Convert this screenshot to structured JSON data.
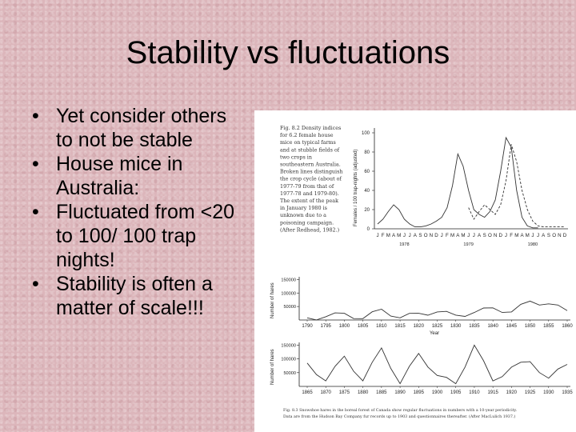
{
  "slide": {
    "title": "Stability vs fluctuations",
    "bullets": [
      [
        "Yet consider others",
        "to not be stable"
      ],
      [
        "House mice in",
        "Australia:"
      ],
      [
        "Fluctuated from <20",
        "to 100/ 100 trap",
        "nights!"
      ],
      [
        "Stability is often a",
        "matter of scale!!!"
      ]
    ]
  },
  "figure": {
    "caption_1": [
      "Fig. 8.2  Density indices",
      "for 6.2 female house",
      "mice on typical farms",
      "and at stubble fields of",
      "two crops in",
      "southeastern Australia.",
      "Broken lines distinguish",
      "the crop cycle (about of",
      "1977-79 from that of",
      "1977-78 and 1979-80).",
      "The extent of the peak",
      "in January 1980 is",
      "unknown due to a",
      "poisoning campaign.",
      "(After Redhead, 1982.)"
    ],
    "caption_2": [
      "Fig. 8.3  Snowshoe hares in the boreal forest of Canada show regular fluctuations in numbers with a 10-year periodicity.",
      "Data are from the Hudson Bay Company fur records up to 1903 and questionnaires thereafter. (After MacLulich 1937.)"
    ],
    "chart_mice": {
      "ylabel": "Females / 100 trap-nights (adjusted)",
      "yticks": [
        "100",
        "80",
        "60",
        "40",
        "20",
        "0"
      ],
      "months": [
        "J",
        "F",
        "M",
        "A",
        "M",
        "J",
        "J",
        "A",
        "S",
        "O",
        "N",
        "D",
        "J",
        "F",
        "M",
        "A",
        "M",
        "J",
        "J",
        "A",
        "S",
        "O",
        "N",
        "D",
        "J",
        "F",
        "M",
        "A",
        "M",
        "J",
        "J",
        "A",
        "S",
        "O",
        "N",
        "D"
      ],
      "years": [
        "1978",
        "1979",
        "1980"
      ]
    },
    "chart_hare_a": {
      "ylabel": "Number of hares",
      "yticks": [
        "150000",
        "100000",
        "50000"
      ],
      "xticks": [
        "1790",
        "1795",
        "1800",
        "1805",
        "1810",
        "1815",
        "1820",
        "1825",
        "1830",
        "1835",
        "1840",
        "1845",
        "1850",
        "1855",
        "1860"
      ],
      "year_label": "Year"
    },
    "chart_hare_b": {
      "ylabel": "Number of hares",
      "yticks": [
        "150000",
        "100000",
        "50000"
      ],
      "xticks": [
        "1865",
        "1870",
        "1875",
        "1880",
        "1885",
        "1890",
        "1895",
        "1900",
        "1905",
        "1910",
        "1915",
        "1920",
        "1925",
        "1930",
        "1935"
      ]
    }
  },
  "chart_data": [
    {
      "type": "line",
      "title": "",
      "xlabel": "",
      "ylabel": "Females / 100 trap-nights (adjusted)",
      "ylim": [
        0,
        100
      ],
      "x": [
        "J78",
        "F78",
        "M78",
        "A78",
        "M78",
        "J78",
        "J78",
        "A78",
        "S78",
        "O78",
        "N78",
        "D78",
        "J79",
        "F79",
        "M79",
        "A79",
        "M79",
        "J79",
        "J79",
        "A79",
        "S79",
        "O79",
        "N79",
        "D79",
        "J80",
        "F80",
        "M80",
        "A80",
        "M80",
        "J80",
        "J80",
        "A80",
        "S80",
        "O80",
        "N80",
        "D80"
      ],
      "series": [
        {
          "values": [
            5,
            10,
            18,
            25,
            20,
            10,
            5,
            2,
            2,
            3,
            5,
            8,
            12,
            22,
            45,
            78,
            65,
            40,
            20,
            15,
            12,
            18,
            30,
            60,
            95,
            85,
            40,
            12,
            3,
            1,
            1,
            null,
            null,
            null,
            null,
            null
          ]
        },
        {
          "style": "dashed",
          "values": [
            null,
            null,
            null,
            null,
            null,
            null,
            null,
            null,
            null,
            null,
            null,
            null,
            null,
            null,
            null,
            null,
            null,
            22,
            10,
            18,
            25,
            20,
            15,
            25,
            50,
            88,
            70,
            40,
            20,
            8,
            3,
            2,
            2,
            2,
            2,
            2
          ]
        }
      ]
    },
    {
      "type": "line",
      "title": "",
      "xlabel": "",
      "ylabel": "Number of hares",
      "ylim": [
        0,
        160000
      ],
      "x": [
        1790,
        1795,
        1800,
        1805,
        1810,
        1815,
        1820,
        1825,
        1830,
        1835,
        1840,
        1845,
        1850,
        1855,
        1860
      ],
      "series": [
        {
          "values": [
            8000,
            12000,
            25000,
            5000,
            40000,
            8000,
            25000,
            30000,
            18000,
            28000,
            45000,
            30000,
            70000,
            60000,
            35000
          ]
        }
      ]
    },
    {
      "type": "line",
      "title": "",
      "xlabel": "Year",
      "ylabel": "Number of hares",
      "ylim": [
        0,
        160000
      ],
      "x": [
        1865,
        1870,
        1875,
        1880,
        1885,
        1890,
        1895,
        1900,
        1905,
        1910,
        1915,
        1920,
        1925,
        1930,
        1935
      ],
      "series": [
        {
          "values": [
            85000,
            20000,
            110000,
            20000,
            140000,
            10000,
            120000,
            40000,
            10000,
            150000,
            20000,
            70000,
            90000,
            30000,
            80000
          ]
        }
      ]
    }
  ]
}
